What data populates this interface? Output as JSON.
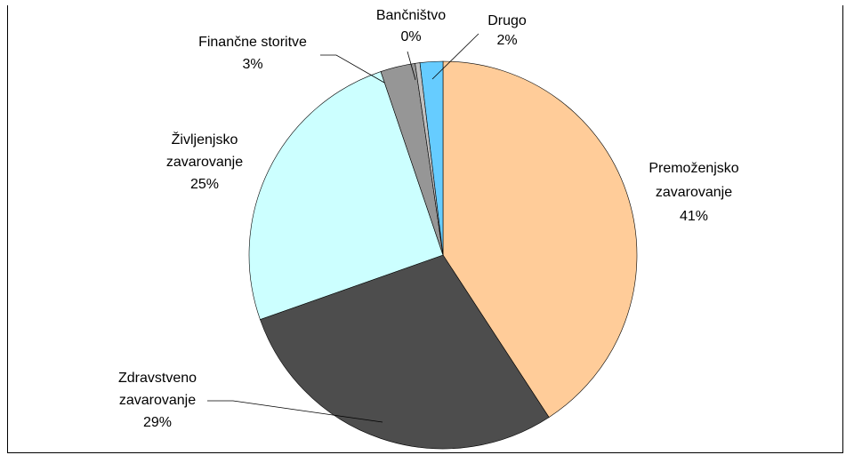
{
  "chart_data": {
    "type": "pie",
    "title": "",
    "start_angle_deg": 90,
    "direction": "clockwise",
    "slices": [
      {
        "name": "Premoženjsko zavarovanje",
        "label_lines": [
          "Premoženjsko",
          "zavarovanje",
          "41%"
        ],
        "value": 40.8,
        "percent_label": "41%",
        "color": "#FFCC99"
      },
      {
        "name": "Zdravstveno zavarovanje",
        "label_lines": [
          "Zdravstveno",
          "zavarovanje",
          "29%"
        ],
        "value": 28.8,
        "percent_label": "29%",
        "color": "#4D4D4D"
      },
      {
        "name": "Življenjsko zavarovanje",
        "label_lines": [
          "Življenjsko",
          "zavarovanje",
          "25%"
        ],
        "value": 25.2,
        "percent_label": "25%",
        "color": "#CCFFFF"
      },
      {
        "name": "Finančne storitve",
        "label_lines": [
          "Finančne storitve",
          "3%"
        ],
        "value": 2.9,
        "percent_label": "3%",
        "color": "#969696"
      },
      {
        "name": "Bančništvo",
        "label_lines": [
          "Bančništvo",
          "0%"
        ],
        "value": 0.4,
        "percent_label": "0%",
        "color": "#C0C0C0"
      },
      {
        "name": "Drugo",
        "label_lines": [
          "Drugo",
          "2%"
        ],
        "value": 1.9,
        "percent_label": "2%",
        "color": "#66CCFF"
      }
    ],
    "legend": "none"
  }
}
